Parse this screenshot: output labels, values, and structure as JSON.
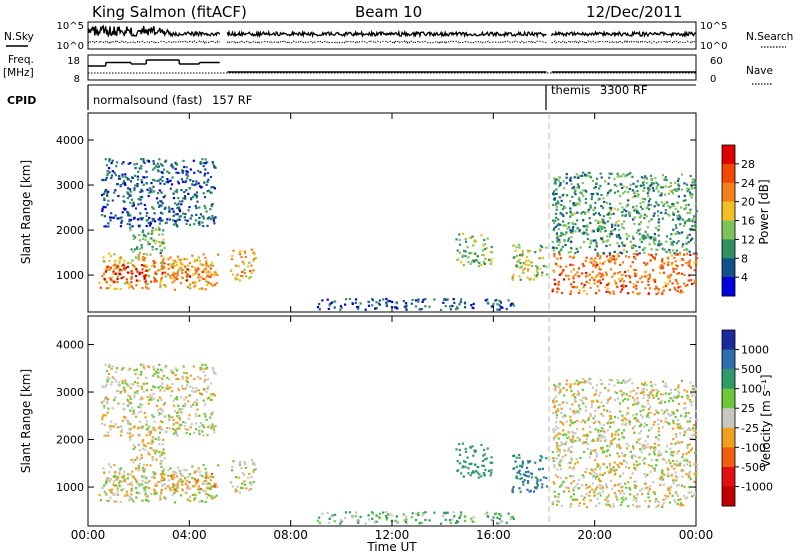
{
  "chart_data": {
    "type": "heatmap",
    "header": {
      "title": "King Salmon (fitACF)",
      "beam": "Beam 10",
      "date": "12/Dec/2011"
    },
    "status_panels": {
      "nsky": {
        "label": "N.Sky",
        "right_label": "N.Search",
        "left_ticks": [
          "10^5",
          "10^0"
        ],
        "right_ticks": [
          "10^5",
          "10^0"
        ]
      },
      "freq": {
        "label": "Freq.",
        "unit": "[MHz]",
        "right_label": "Nave",
        "left_ticks": [
          "18",
          "8"
        ],
        "right_ticks": [
          "60",
          "0"
        ],
        "freq_steps": [
          {
            "t0": 0.0,
            "t1": 0.7,
            "f": 13.6
          },
          {
            "t0": 0.7,
            "t1": 1.7,
            "f": 15.0
          },
          {
            "t0": 1.7,
            "t1": 2.3,
            "f": 14.4
          },
          {
            "t0": 2.3,
            "t1": 3.6,
            "f": 16.0
          },
          {
            "t0": 3.6,
            "t1": 4.4,
            "f": 14.4
          },
          {
            "t0": 4.4,
            "t1": 5.2,
            "f": 15.0
          },
          {
            "t0": 5.5,
            "t1": 18.1,
            "f": 11.2
          },
          {
            "t0": 18.3,
            "t1": 24.0,
            "f": 11.2
          }
        ]
      },
      "cpid": {
        "label": "CPID",
        "programs": [
          {
            "name": "normalsound (fast)",
            "code": "157 RF",
            "start": 0.0
          },
          {
            "name": "themis",
            "code": "3300 RF",
            "start": 18.2
          }
        ]
      }
    },
    "panels": [
      {
        "name": "power",
        "ylabel": "Slant Range [km]",
        "ylim": [
          180,
          4600
        ],
        "yticks": [
          1000,
          2000,
          3000,
          4000
        ],
        "colorbar": {
          "label": "Power [dB]",
          "ticks": [
            "28",
            "24",
            "20",
            "16",
            "12",
            "8",
            "4"
          ],
          "colors": [
            "#e00000",
            "#f24800",
            "#f5801a",
            "#f2c020",
            "#7cc45a",
            "#2e8f60",
            "#12508c",
            "#0000dc"
          ]
        }
      },
      {
        "name": "velocity",
        "ylabel": "Slant Range [km]",
        "ylim": [
          180,
          4600
        ],
        "yticks": [
          1000,
          2000,
          3000,
          4000
        ],
        "colorbar": {
          "label": "Velocity [m s⁻¹]",
          "ticks": [
            "1000",
            "500",
            "100",
            "25",
            "-25",
            "-100",
            "-500",
            "-1000"
          ],
          "colors": [
            "#1a2a9a",
            "#2f6fb0",
            "#2f9a6a",
            "#6cc83a",
            "#c8c8c0",
            "#f0a020",
            "#f06010",
            "#e01010",
            "#c00000"
          ]
        }
      }
    ],
    "xaxis": {
      "label": "Time UT",
      "xlim": [
        0,
        24
      ],
      "ticks": [
        "00:00",
        "04:00",
        "08:00",
        "12:00",
        "16:00",
        "20:00",
        "00:00"
      ]
    },
    "data_gaps_hours": [
      {
        "t0": 5.2,
        "t1": 5.5
      },
      {
        "t0": 18.1,
        "t1": 18.3
      }
    ],
    "scatter_regions": [
      {
        "t0": 0.4,
        "t1": 5.1,
        "r0": 700,
        "r1": 1500,
        "power": 18,
        "velocity": 0
      },
      {
        "t0": 0.6,
        "t1": 2.6,
        "r0": 850,
        "r1": 1250,
        "power": 26,
        "velocity": 0
      },
      {
        "t0": 2.6,
        "t1": 5.0,
        "r0": 900,
        "r1": 1300,
        "power": 22,
        "velocity": -60
      },
      {
        "t0": 1.6,
        "t1": 3.0,
        "r0": 1500,
        "r1": 2100,
        "power": 12,
        "velocity": 0
      },
      {
        "t0": 0.5,
        "t1": 5.0,
        "r0": 2100,
        "r1": 3600,
        "power": 6,
        "velocity": 0
      },
      {
        "t0": 5.6,
        "t1": 6.6,
        "r0": 900,
        "r1": 1600,
        "power": 18,
        "velocity": 0
      },
      {
        "t0": 9.0,
        "t1": 16.8,
        "r0": 250,
        "r1": 500,
        "power": 6,
        "velocity": 60
      },
      {
        "t0": 14.5,
        "t1": 16.0,
        "r0": 1200,
        "r1": 1950,
        "power": 12,
        "velocity": 200
      },
      {
        "t0": 16.7,
        "t1": 18.1,
        "r0": 900,
        "r1": 1700,
        "power": 14,
        "velocity": 300
      },
      {
        "t0": 18.3,
        "t1": 24.0,
        "r0": 600,
        "r1": 1500,
        "power": 22,
        "velocity": 0
      },
      {
        "t0": 18.3,
        "t1": 24.0,
        "r0": 1500,
        "r1": 3300,
        "power": 10,
        "velocity": 0
      }
    ]
  }
}
